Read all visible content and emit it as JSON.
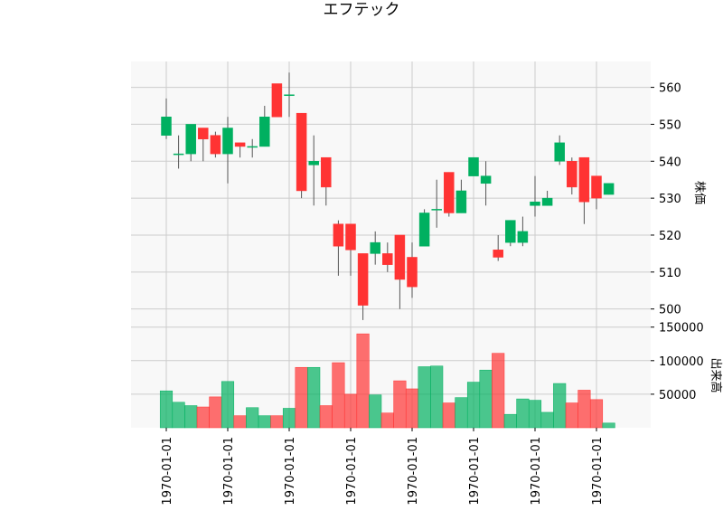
{
  "chart_data": {
    "type": "candlestick",
    "title": "エフテック",
    "price_panel": {
      "ylabel": "株価",
      "ylim": [
        496,
        567
      ],
      "yticks": [
        500,
        510,
        520,
        530,
        540,
        550,
        560
      ],
      "grid": true
    },
    "volume_panel": {
      "ylabel": "出来高",
      "ylim": [
        0,
        155000
      ],
      "yticks": [
        50000,
        100000,
        150000
      ],
      "grid": true
    },
    "x_tick_labels": [
      "1970-01-01",
      "1970-01-01",
      "1970-01-01",
      "1970-01-01",
      "1970-01-01",
      "1970-01-01",
      "1970-01-01",
      "1970-01-01"
    ],
    "x_tick_positions": [
      0,
      5,
      10,
      15,
      20,
      25,
      30,
      35
    ],
    "colors": {
      "up": "#00b060",
      "down": "#ff3333",
      "wick": "#555555",
      "grid": "#cccccc",
      "panel_bg": "#f8f8f8"
    },
    "candles": [
      {
        "o": 547,
        "h": 557,
        "l": 546,
        "c": 552,
        "v": 55000
      },
      {
        "o": 542,
        "h": 547,
        "l": 538,
        "c": 542,
        "v": 38000
      },
      {
        "o": 542,
        "h": 550,
        "l": 540,
        "c": 550,
        "v": 33000
      },
      {
        "o": 549,
        "h": 549,
        "l": 540,
        "c": 546,
        "v": 31000
      },
      {
        "o": 547,
        "h": 548,
        "l": 541,
        "c": 542,
        "v": 46000
      },
      {
        "o": 542,
        "h": 552,
        "l": 534,
        "c": 549,
        "v": 69000
      },
      {
        "o": 545,
        "h": 545,
        "l": 541,
        "c": 544,
        "v": 18000
      },
      {
        "o": 544,
        "h": 546,
        "l": 541,
        "c": 544,
        "v": 30000
      },
      {
        "o": 544,
        "h": 555,
        "l": 544,
        "c": 552,
        "v": 18000
      },
      {
        "o": 561,
        "h": 561,
        "l": 552,
        "c": 552,
        "v": 18000
      },
      {
        "o": 558,
        "h": 564,
        "l": 552,
        "c": 558,
        "v": 29000
      },
      {
        "o": 553,
        "h": 553,
        "l": 530,
        "c": 532,
        "v": 90000
      },
      {
        "o": 539,
        "h": 547,
        "l": 528,
        "c": 540,
        "v": 90000
      },
      {
        "o": 541,
        "h": 541,
        "l": 528,
        "c": 533,
        "v": 33000
      },
      {
        "o": 523,
        "h": 524,
        "l": 509,
        "c": 517,
        "v": 97000
      },
      {
        "o": 523,
        "h": 523,
        "l": 509,
        "c": 516,
        "v": 50000
      },
      {
        "o": 515,
        "h": 515,
        "l": 497,
        "c": 501,
        "v": 140000
      },
      {
        "o": 515,
        "h": 521,
        "l": 512,
        "c": 518,
        "v": 49000
      },
      {
        "o": 515,
        "h": 518,
        "l": 510,
        "c": 512,
        "v": 22000
      },
      {
        "o": 520,
        "h": 520,
        "l": 500,
        "c": 508,
        "v": 70000
      },
      {
        "o": 514,
        "h": 518,
        "l": 503,
        "c": 506,
        "v": 58000
      },
      {
        "o": 517,
        "h": 527,
        "l": 517,
        "c": 526,
        "v": 91000
      },
      {
        "o": 527,
        "h": 535,
        "l": 522,
        "c": 527,
        "v": 92000
      },
      {
        "o": 537,
        "h": 537,
        "l": 525,
        "c": 526,
        "v": 37000
      },
      {
        "o": 526,
        "h": 535,
        "l": 526,
        "c": 532,
        "v": 45000
      },
      {
        "o": 536,
        "h": 541,
        "l": 536,
        "c": 541,
        "v": 68000
      },
      {
        "o": 534,
        "h": 540,
        "l": 528,
        "c": 536,
        "v": 86000
      },
      {
        "o": 516,
        "h": 520,
        "l": 513,
        "c": 514,
        "v": 111000
      },
      {
        "o": 518,
        "h": 524,
        "l": 517,
        "c": 524,
        "v": 20000
      },
      {
        "o": 518,
        "h": 525,
        "l": 517,
        "c": 521,
        "v": 43000
      },
      {
        "o": 528,
        "h": 536,
        "l": 525,
        "c": 529,
        "v": 41000
      },
      {
        "o": 528,
        "h": 532,
        "l": 528,
        "c": 530,
        "v": 23000
      },
      {
        "o": 540,
        "h": 547,
        "l": 539,
        "c": 545,
        "v": 66000
      },
      {
        "o": 540,
        "h": 541,
        "l": 531,
        "c": 533,
        "v": 37000
      },
      {
        "o": 541,
        "h": 541,
        "l": 523,
        "c": 529,
        "v": 56000
      },
      {
        "o": 536,
        "h": 536,
        "l": 527,
        "c": 530,
        "v": 42000
      },
      {
        "o": 531,
        "h": 534,
        "l": 531,
        "c": 534,
        "v": 7000
      }
    ]
  }
}
